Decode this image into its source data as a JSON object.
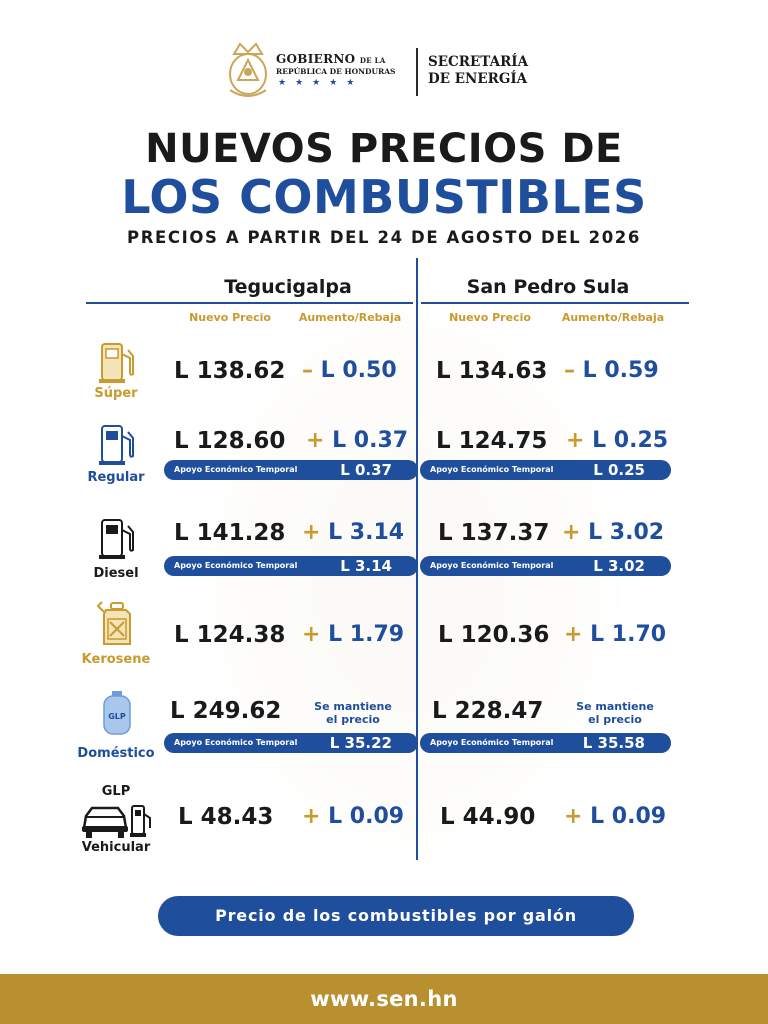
{
  "header": {
    "gov_line1_main": "GOBIERNO",
    "gov_line1_small": "DE LA",
    "gov_line2": "REPÚBLICA DE HONDURAS",
    "gov_stars": "★★★★★",
    "secretaria_line1": "SECRETARÍA",
    "secretaria_line2": "DE ENERGÍA"
  },
  "title": {
    "line1": "NUEVOS PRECIOS DE",
    "line2": "LOS COMBUSTIBLES",
    "subtitle": "PRECIOS A PARTIR DEL 24 DE AGOSTO DEL 2026"
  },
  "columns": {
    "city1": "Tegucigalpa",
    "city2": "San Pedro Sula",
    "nuevo_precio": "Nuevo Precio",
    "aumento_rebaja": "Aumento/Rebaja"
  },
  "apoyo_label": "Apoyo Económico Temporal",
  "keep_line1": "Se mantiene",
  "keep_line2": "el precio",
  "rows": [
    {
      "label": "Súper",
      "icon": "gas-pump-icon",
      "teg": {
        "price": "L 138.62",
        "sign": "–",
        "change": "L 0.50"
      },
      "sps": {
        "price": "L 134.63",
        "sign": "–",
        "change": "L 0.59"
      }
    },
    {
      "label": "Regular",
      "icon": "gas-pump-icon",
      "teg": {
        "price": "L 128.60",
        "sign": "+",
        "change": "L 0.37",
        "apoyo": "L 0.37"
      },
      "sps": {
        "price": "L 124.75",
        "sign": "+",
        "change": "L 0.25",
        "apoyo": "L 0.25"
      }
    },
    {
      "label": "Diesel",
      "icon": "gas-pump-icon",
      "teg": {
        "price": "L 141.28",
        "sign": "+",
        "change": "L 3.14",
        "apoyo": "L 3.14"
      },
      "sps": {
        "price": "L 137.37",
        "sign": "+",
        "change": "L 3.02",
        "apoyo": "L 3.02"
      }
    },
    {
      "label": "Kerosene",
      "icon": "jerrycan-icon",
      "teg": {
        "price": "L 124.38",
        "sign": "+",
        "change": "L 1.79"
      },
      "sps": {
        "price": "L 120.36",
        "sign": "+",
        "change": "L 1.70"
      }
    },
    {
      "label": "Doméstico",
      "icon": "gas-cylinder-icon",
      "icon_text": "GLP",
      "teg": {
        "price": "L 249.62",
        "apoyo": "L 35.22"
      },
      "sps": {
        "price": "L 228.47",
        "apoyo": "L 35.58"
      }
    },
    {
      "label_top": "GLP",
      "label": "Vehicular",
      "icon": "car-pump-icon",
      "teg": {
        "price": "L 48.43",
        "sign": "+",
        "change": "L 0.09"
      },
      "sps": {
        "price": "L 44.90",
        "sign": "+",
        "change": "L 0.09"
      }
    }
  ],
  "footer": {
    "note": "Precio de los combustibles por galón",
    "url": "www.sen.hn"
  },
  "colors": {
    "blue": "#1f4e9c",
    "gold": "#c99a2e",
    "footer_bar": "#b8902f"
  }
}
